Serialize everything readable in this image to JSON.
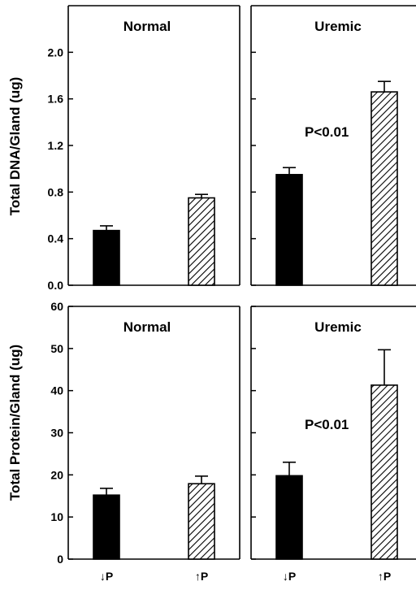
{
  "chart_data": [
    {
      "type": "bar",
      "ylabel": "Total DNA/Gland (ug)",
      "ylim": [
        0,
        2.4
      ],
      "yticks": [
        "0.0",
        "0.4",
        "0.8",
        "1.2",
        "1.6",
        "2.0"
      ],
      "panels": [
        {
          "title": "Normal",
          "annotation": "",
          "bars": [
            {
              "value": 0.47,
              "error": 0.04,
              "fill": "solid"
            },
            {
              "value": 0.75,
              "error": 0.03,
              "fill": "hatched"
            }
          ]
        },
        {
          "title": "Uremic",
          "annotation": "P<0.01",
          "bars": [
            {
              "value": 0.95,
              "error": 0.06,
              "fill": "solid"
            },
            {
              "value": 1.66,
              "error": 0.09,
              "fill": "hatched"
            }
          ]
        }
      ]
    },
    {
      "type": "bar",
      "ylabel": "Total Protein/Gland (ug)",
      "ylim": [
        0,
        60
      ],
      "yticks": [
        "0",
        "10",
        "20",
        "30",
        "40",
        "50",
        "60"
      ],
      "categories": [
        "↓P",
        "↑P"
      ],
      "panels": [
        {
          "title": "Normal",
          "annotation": "",
          "bars": [
            {
              "value": 15.2,
              "error": 1.6,
              "fill": "solid"
            },
            {
              "value": 17.9,
              "error": 1.8,
              "fill": "hatched"
            }
          ]
        },
        {
          "title": "Uremic",
          "annotation": "P<0.01",
          "bars": [
            {
              "value": 19.8,
              "error": 3.2,
              "fill": "solid"
            },
            {
              "value": 41.3,
              "error": 8.4,
              "fill": "hatched"
            }
          ]
        }
      ]
    }
  ]
}
